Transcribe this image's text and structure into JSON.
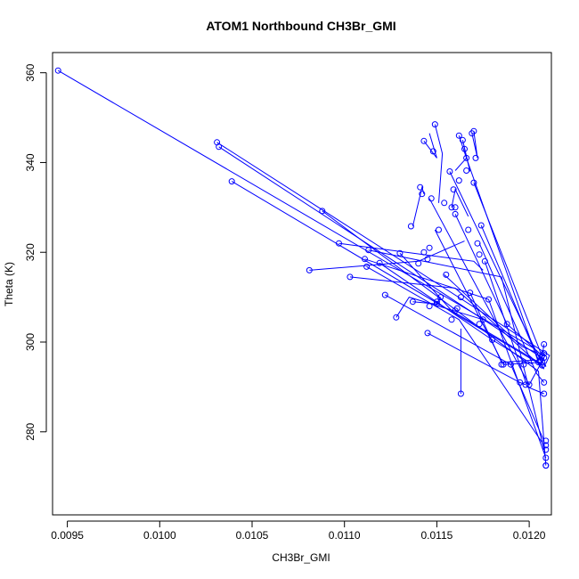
{
  "chart_data": {
    "type": "line",
    "title": "ATOM1 Northbound CH3Br_GMI",
    "xlabel": "CH3Br_GMI",
    "ylabel": "Theta (K)",
    "xlim": [
      0.00942,
      0.01212
    ],
    "ylim": [
      261.5,
      364.5
    ],
    "x_ticks": [
      "0.0095",
      "0.0100",
      "0.0105",
      "0.0110",
      "0.0115",
      "0.0120"
    ],
    "x_tick_values": [
      0.0095,
      0.01,
      0.0105,
      0.011,
      0.0115,
      0.012
    ],
    "y_ticks": [
      "280",
      "300",
      "320",
      "340",
      "360"
    ],
    "y_tick_values": [
      280,
      300,
      320,
      340,
      360
    ],
    "grid": false,
    "legend": "none",
    "series_color": "#0000ff",
    "series": [
      {
        "segments": [
          {
            "x": [
              0.00945,
              0.01203,
              0.01208
            ],
            "y": [
              360.5,
              298.5,
              295.0
            ]
          },
          {
            "x": [
              0.01031,
              0.01211,
              0.01209
            ],
            "y": [
              344.5,
              297.0,
              295.2
            ]
          },
          {
            "x": [
              0.01032,
              0.01208,
              0.01209
            ],
            "y": [
              343.5,
              296.2,
              294.5
            ]
          },
          {
            "x": [
              0.01039,
              0.01207,
              0.01208
            ],
            "y": [
              335.8,
              294.8,
              294.0
            ]
          },
          {
            "x": [
              0.01088,
              0.01205,
              0.01209
            ],
            "y": [
              329.2,
              293.5,
              272.5
            ]
          },
          {
            "x": [
              0.01097,
              0.0117,
              0.01175
            ],
            "y": [
              322.0,
              318.0,
              316.0
            ]
          },
          {
            "x": [
              0.01081,
              0.0114,
              0.01165
            ],
            "y": [
              316.0,
              318.0,
              322.5
            ]
          },
          {
            "x": [
              0.01103,
              0.0116,
              0.01208
            ],
            "y": [
              314.5,
              312.0,
              294.0
            ]
          },
          {
            "x": [
              0.01113,
              0.01185,
              0.01208
            ],
            "y": [
              320.5,
              314.5,
              276.0
            ]
          },
          {
            "x": [
              0.01111,
              0.01178,
              0.01209
            ],
            "y": [
              318.5,
              309.5,
              274.2
            ]
          },
          {
            "x": [
              0.01112,
              0.01162,
              0.01208
            ],
            "y": [
              316.8,
              305.0,
              277.0
            ]
          },
          {
            "x": [
              0.01119,
              0.0118,
              0.01202
            ],
            "y": [
              317.6,
              300.5,
              295.0
            ]
          },
          {
            "x": [
              0.01122,
              0.0119,
              0.01208
            ],
            "y": [
              310.5,
              295.0,
              278.0
            ]
          },
          {
            "x": [
              0.01128,
              0.01135,
              0.01175
            ],
            "y": [
              305.5,
              310.0,
              305.0
            ]
          },
          {
            "x": [
              0.0113,
              0.01158,
              0.01208
            ],
            "y": [
              319.8,
              307.0,
              294.8
            ]
          },
          {
            "x": [
              0.01137,
              0.0115,
              0.01152
            ],
            "y": [
              309.0,
              308.5,
              310.0
            ]
          },
          {
            "x": [
              0.01145,
              0.01195,
              0.01198
            ],
            "y": [
              302.0,
              291.0,
              290.5
            ]
          },
          {
            "x": [
              0.01163,
              0.01163
            ],
            "y": [
              288.5,
              303.0
            ]
          },
          {
            "x": [
              0.01137,
              0.01142,
              0.01143
            ],
            "y": [
              325.8,
              334.5,
              333.0
            ]
          },
          {
            "x": [
              0.01143,
              0.0115,
              0.01146
            ],
            "y": [
              344.8,
              341.0,
              346.5
            ]
          },
          {
            "x": [
              0.01149,
              0.01153,
              0.01151
            ],
            "y": [
              348.5,
              342.0,
              331.0
            ]
          },
          {
            "x": [
              0.01158,
              0.0116,
              0.01167
            ],
            "y": [
              330.0,
              334.0,
              328.0
            ]
          },
          {
            "x": [
              0.01162,
              0.01166,
              0.0116
            ],
            "y": [
              346.0,
              341.0,
              338.2
            ]
          },
          {
            "x": [
              0.01165,
              0.01168,
              0.01164
            ],
            "y": [
              343.0,
              338.0,
              345.0
            ]
          },
          {
            "x": [
              0.0117,
              0.01172,
              0.01169
            ],
            "y": [
              347.0,
              341.0,
              346.5
            ]
          },
          {
            "x": [
              0.0117,
              0.01207,
              0.01208
            ],
            "y": [
              335.5,
              296.8,
              299.5
            ]
          },
          {
            "x": [
              0.01157,
              0.01206,
              0.01208
            ],
            "y": [
              338.0,
              296.0,
              297.5
            ]
          },
          {
            "x": [
              0.01166,
              0.01205,
              0.01207
            ],
            "y": [
              341.0,
              295.5,
              294.8
            ]
          },
          {
            "x": [
              0.01173,
              0.01204,
              0.01208
            ],
            "y": [
              322.0,
              293.0,
              291.0
            ]
          },
          {
            "x": [
              0.01176,
              0.01199,
              0.01208
            ],
            "y": [
              318.0,
              290.0,
              288.5
            ]
          },
          {
            "x": [
              0.01146,
              0.012,
              0.01208
            ],
            "y": [
              332.0,
              290.5,
              296.5
            ]
          },
          {
            "x": [
              0.0116,
              0.01188,
              0.01207
            ],
            "y": [
              328.5,
              304.0,
              297.0
            ]
          },
          {
            "x": [
              0.01149,
              0.01186,
              0.01206
            ],
            "y": [
              325.0,
              295.0,
              295.5
            ]
          },
          {
            "x": [
              0.01174,
              0.01205,
              0.01207
            ],
            "y": [
              326.0,
              296.0,
              298.0
            ]
          },
          {
            "x": [
              0.01154,
              0.01196,
              0.01205
            ],
            "y": [
              315.0,
              299.0,
              297.5
            ]
          },
          {
            "x": [
              0.01168,
              0.01185,
              0.01203
            ],
            "y": [
              311.0,
              295.5,
              296.0
            ]
          }
        ]
      }
    ],
    "points": {
      "x": [
        0.00945,
        0.01031,
        0.01032,
        0.01039,
        0.01081,
        0.01088,
        0.01097,
        0.01103,
        0.01111,
        0.01112,
        0.01113,
        0.01119,
        0.01122,
        0.01128,
        0.0113,
        0.01136,
        0.01137,
        0.0114,
        0.01141,
        0.01142,
        0.01143,
        0.01143,
        0.01145,
        0.01145,
        0.01146,
        0.01147,
        0.01148,
        0.01149,
        0.0115,
        0.01151,
        0.01152,
        0.01154,
        0.01155,
        0.01157,
        0.01158,
        0.01158,
        0.01159,
        0.0116,
        0.0116,
        0.01161,
        0.01162,
        0.01162,
        0.01163,
        0.01163,
        0.01164,
        0.01165,
        0.01166,
        0.01166,
        0.01167,
        0.01168,
        0.01169,
        0.0117,
        0.0117,
        0.01171,
        0.01172,
        0.01173,
        0.01173,
        0.01174,
        0.01175,
        0.01176,
        0.01178,
        0.0118,
        0.01185,
        0.01186,
        0.01188,
        0.0119,
        0.01195,
        0.01197,
        0.01198,
        0.012,
        0.01205,
        0.01206,
        0.01207,
        0.01207,
        0.01208,
        0.01208,
        0.01208,
        0.01208,
        0.01208,
        0.01209,
        0.01209,
        0.01209,
        0.01209,
        0.01209,
        0.01209,
        0.01146,
        0.0115,
        0.0116
      ],
      "y": [
        360.5,
        344.5,
        343.5,
        335.8,
        316.0,
        329.2,
        322.0,
        314.5,
        318.5,
        316.8,
        320.5,
        317.6,
        310.5,
        305.5,
        319.8,
        325.8,
        309.0,
        317.5,
        334.5,
        333.0,
        344.8,
        320.0,
        318.5,
        302.0,
        321.0,
        332.0,
        342.5,
        348.5,
        308.5,
        325.0,
        310.0,
        331.0,
        315.0,
        338.0,
        305.0,
        330.0,
        334.0,
        328.5,
        307.0,
        307.5,
        346.0,
        336.0,
        288.5,
        310.0,
        345.0,
        343.0,
        341.0,
        338.2,
        325.0,
        311.0,
        346.5,
        347.0,
        335.5,
        341.0,
        322.0,
        304.0,
        319.5,
        326.0,
        305.0,
        318.0,
        309.5,
        300.5,
        295.0,
        295.0,
        304.0,
        295.0,
        291.0,
        295.0,
        290.5,
        290.5,
        295.5,
        296.0,
        297.0,
        294.8,
        299.5,
        297.5,
        296.5,
        291.0,
        288.5,
        278.0,
        277.0,
        276.0,
        274.2,
        272.5,
        272.5,
        308.0,
        309.0,
        330.0
      ]
    }
  }
}
